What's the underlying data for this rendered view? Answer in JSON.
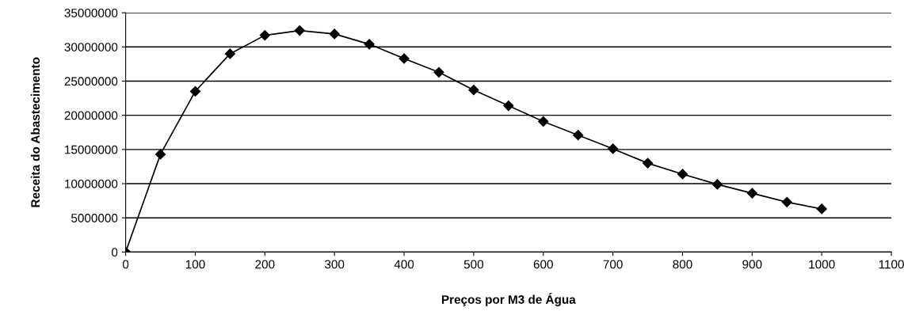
{
  "chart_data": {
    "type": "line",
    "xlabel": "Preços por M3 de Água",
    "ylabel": "Receita do Abastecimento",
    "x": [
      0,
      50,
      100,
      150,
      200,
      250,
      300,
      350,
      400,
      450,
      500,
      550,
      600,
      650,
      700,
      750,
      800,
      850,
      900,
      950,
      1000
    ],
    "values": [
      0,
      14300000,
      23500000,
      29000000,
      31700000,
      32400000,
      31900000,
      30400000,
      28300000,
      26300000,
      23700000,
      21400000,
      19100000,
      17100000,
      15100000,
      13000000,
      11400000,
      9900000,
      8600000,
      7300000,
      6300000
    ],
    "color": "#000000",
    "marker": "diamond",
    "line_style": "solid",
    "grid": "y",
    "legend": false,
    "xlim": [
      0,
      1100
    ],
    "xticks": [
      0,
      100,
      200,
      300,
      400,
      500,
      600,
      700,
      800,
      900,
      1000,
      1100
    ],
    "ylim": [
      0,
      35000000
    ],
    "yticks": [
      0,
      5000000,
      10000000,
      15000000,
      20000000,
      25000000,
      30000000,
      35000000
    ]
  }
}
